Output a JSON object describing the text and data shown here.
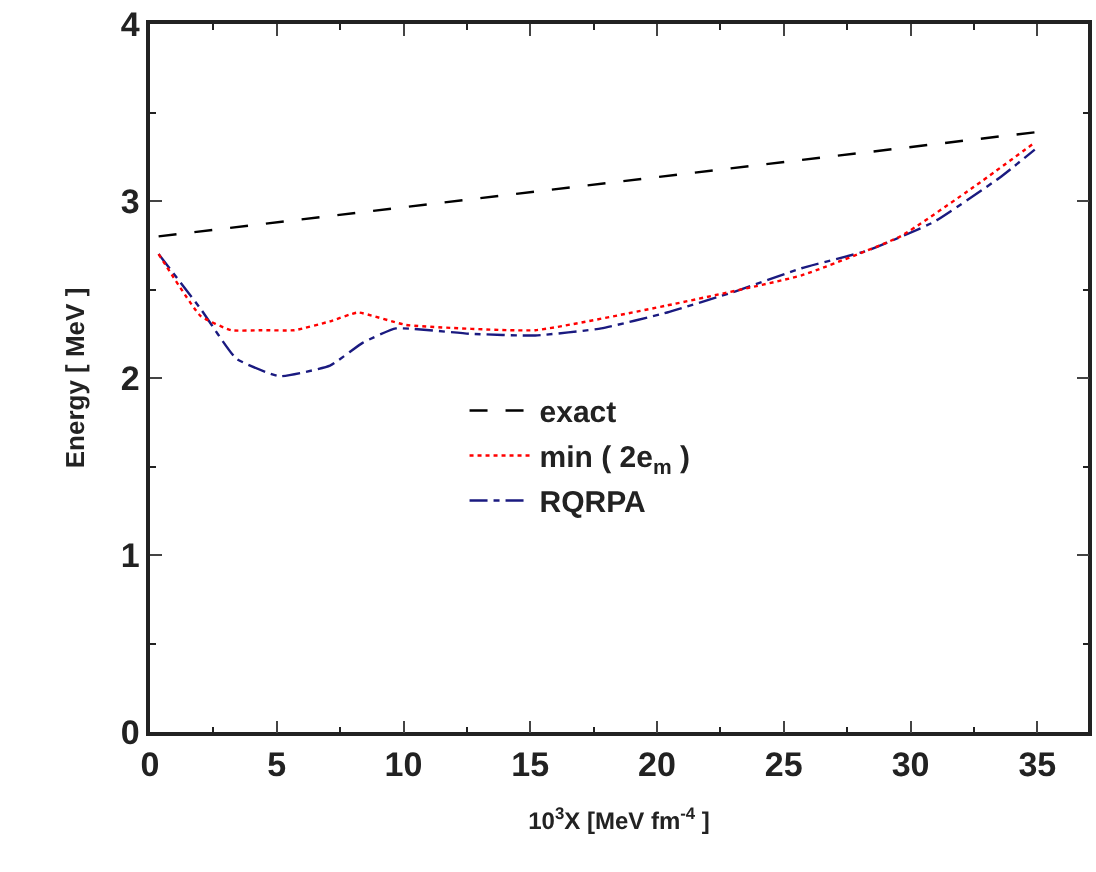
{
  "chart_data": {
    "type": "line",
    "xlabel": "10$^{3}$X [MeV fm$^{-4}$ ]",
    "ylabel": "Energy [ MeV ]",
    "xlim": [
      0,
      37
    ],
    "ylim": [
      0,
      4
    ],
    "xticks": [
      0,
      {
        "value": 2.5,
        "label": null
      },
      5,
      {
        "value": 7.5,
        "label": null
      },
      10,
      {
        "value": 12.5,
        "label": null
      },
      15,
      {
        "value": 17.5,
        "label": null
      },
      20,
      {
        "value": 22.5,
        "label": null
      },
      25,
      {
        "value": 27.5,
        "label": null
      },
      30,
      {
        "value": 32.5,
        "label": null
      },
      35
    ],
    "yticks": [
      0,
      {
        "value": 0.5,
        "label": null
      },
      1,
      {
        "value": 1.5,
        "label": null
      },
      2,
      {
        "value": 2.5,
        "label": null
      },
      3,
      {
        "value": 3.5,
        "label": null
      },
      4
    ],
    "legend": "center",
    "marker": "none",
    "series": [
      {
        "name": "exact",
        "color": "#000000",
        "line_style": "dashed",
        "x": [
          0.34,
          35
        ],
        "values": [
          2.8,
          3.39
        ]
      },
      {
        "name": "min ( 2e$_{m}$ )",
        "color": "#ff0000",
        "line_style": "dotted",
        "x": [
          0.34,
          2.0,
          3.2,
          4.4,
          5.7,
          7.1,
          8.2,
          10.1,
          15.2,
          20.4,
          25.7,
          29.6,
          32.5,
          34.9
        ],
        "values": [
          2.7,
          2.35,
          2.27,
          2.27,
          2.27,
          2.32,
          2.37,
          2.3,
          2.27,
          2.41,
          2.58,
          2.8,
          3.08,
          3.33
        ]
      },
      {
        "name": "RQRPA",
        "color": "#1a1a80",
        "line_style": "dashdot",
        "x": [
          0.34,
          2.0,
          3.4,
          5.1,
          7.1,
          8.4,
          9.7,
          12.6,
          15.2,
          17.8,
          20.4,
          23.1,
          25.7,
          28.3,
          30.9,
          33.5,
          34.9
        ],
        "values": [
          2.7,
          2.39,
          2.11,
          2.01,
          2.07,
          2.2,
          2.28,
          2.25,
          2.24,
          2.28,
          2.37,
          2.49,
          2.62,
          2.72,
          2.88,
          3.13,
          3.29
        ]
      }
    ]
  }
}
